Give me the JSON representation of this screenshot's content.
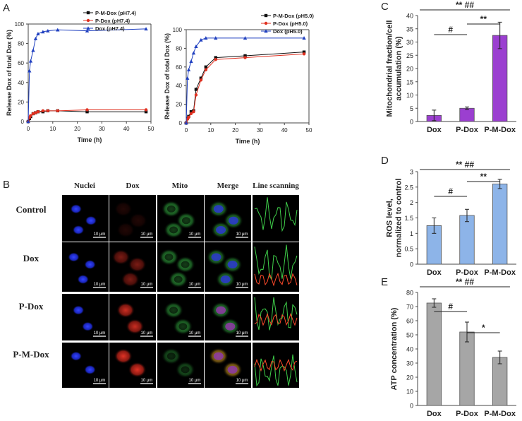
{
  "colors": {
    "pmdox": "#111111",
    "pdox": "#e03020",
    "dox": "#2040c0",
    "bar_c": "#9b3fd0",
    "bar_d": "#8db4e8",
    "bar_e": "#a6a6a6",
    "nuclei": "#1d2cd8",
    "red_cell": "#cc2a1e",
    "green_cell": "#2f9a3a",
    "merge_yellow": "#c79a1f"
  },
  "panel_labels": {
    "a": "A",
    "b": "B",
    "c": "C",
    "d": "D",
    "e": "E"
  },
  "chart_data": [
    {
      "id": "A1",
      "type": "line",
      "xlabel": "Time (h)",
      "ylabel": "Release Dox of total Dox (%)",
      "xlim": [
        0,
        50
      ],
      "ylim": [
        0,
        100
      ],
      "xticks": [
        "0",
        "10",
        "20",
        "30",
        "40",
        "50"
      ],
      "yticks": [
        "0",
        "20",
        "40",
        "60",
        "80",
        "100"
      ],
      "legend_position": "top-center",
      "series": [
        {
          "name": "P-M-Dox (pH7.4)",
          "marker": "square",
          "color": "#111111",
          "x": [
            0,
            0.5,
            1,
            2,
            3,
            4,
            6,
            8,
            12,
            24,
            48
          ],
          "y": [
            0,
            3,
            5,
            8,
            9,
            10,
            10,
            11,
            11,
            10,
            10
          ]
        },
        {
          "name": "P-Dox (pH7.4)",
          "marker": "circle",
          "color": "#e03020",
          "x": [
            0,
            0.5,
            1,
            2,
            3,
            4,
            6,
            8,
            12,
            24,
            48
          ],
          "y": [
            0,
            4,
            6,
            8,
            9,
            10,
            11,
            11,
            11,
            12,
            12
          ]
        },
        {
          "name": "Dox (pH7.4)",
          "marker": "triangle",
          "color": "#2040c0",
          "x": [
            0,
            0.5,
            1,
            2,
            3,
            4,
            6,
            8,
            12,
            24,
            48
          ],
          "y": [
            0,
            52,
            62,
            73,
            85,
            90,
            92,
            93,
            94,
            93,
            95
          ]
        }
      ]
    },
    {
      "id": "A2",
      "type": "line",
      "xlabel": "Time (h)",
      "ylabel": "Release Dox of total Dox (%)",
      "xlim": [
        0,
        50
      ],
      "ylim": [
        0,
        100
      ],
      "xticks": [
        "0",
        "10",
        "20",
        "30",
        "40",
        "50"
      ],
      "yticks": [
        "0",
        "20",
        "40",
        "60",
        "80",
        "100"
      ],
      "legend_position": "top-right",
      "series": [
        {
          "name": "P-M-Dox (pH5.0)",
          "marker": "square",
          "color": "#111111",
          "x": [
            0,
            0.5,
            1,
            2,
            3,
            4,
            6,
            8,
            12,
            24,
            48
          ],
          "y": [
            0,
            5,
            7,
            12,
            13,
            36,
            48,
            60,
            70,
            72,
            76
          ]
        },
        {
          "name": "P-Dox (pH5.0)",
          "marker": "circle",
          "color": "#e03020",
          "x": [
            0,
            0.5,
            1,
            2,
            3,
            4,
            6,
            8,
            12,
            24,
            48
          ],
          "y": [
            0,
            4,
            6,
            10,
            12,
            30,
            46,
            57,
            68,
            70,
            74
          ]
        },
        {
          "name": "Dox (pH5.0)",
          "marker": "triangle",
          "color": "#2040c0",
          "x": [
            0,
            0.5,
            1,
            2,
            3,
            4,
            6,
            8,
            12,
            24,
            48
          ],
          "y": [
            0,
            48,
            57,
            66,
            75,
            82,
            89,
            91,
            91,
            91,
            91
          ]
        }
      ]
    },
    {
      "id": "C",
      "type": "bar",
      "ylabel": "Mitochondrial fraction/cell accumulation (%)",
      "ylabel_lines": [
        "Mitochondrial fraction/cell",
        "accumulation (%)"
      ],
      "categories": [
        "Dox",
        "P-Dox",
        "P-M-Dox"
      ],
      "values": [
        2.3,
        5.0,
        32.5
      ],
      "errors": [
        2.0,
        0.5,
        5.0
      ],
      "ylim": [
        0,
        40
      ],
      "yticks": [
        "0",
        "5",
        "10",
        "15",
        "20",
        "25",
        "30",
        "35",
        "40"
      ],
      "annotations": [
        {
          "from": 1,
          "to": 3,
          "text": "** ##"
        },
        {
          "from": 1,
          "to": 2,
          "text": "#"
        },
        {
          "from": 2,
          "to": 3,
          "text": "**"
        }
      ]
    },
    {
      "id": "D",
      "type": "bar",
      "ylabel": "ROS level, normalized to control",
      "ylabel_lines": [
        "ROS level,",
        "normalized to control"
      ],
      "categories": [
        "Dox",
        "P-Dox",
        "P-M-Dox"
      ],
      "values": [
        1.25,
        1.58,
        2.6
      ],
      "errors": [
        0.25,
        0.2,
        0.15
      ],
      "ylim": [
        0,
        3
      ],
      "yticks": [
        "0",
        "0.5",
        "1",
        "1.5",
        "2",
        "2.5",
        "3"
      ],
      "annotations": [
        {
          "from": 1,
          "to": 3,
          "text": "** ##"
        },
        {
          "from": 1,
          "to": 2,
          "text": "#"
        },
        {
          "from": 2,
          "to": 3,
          "text": "**"
        }
      ]
    },
    {
      "id": "E",
      "type": "bar",
      "ylabel": "ATP concentration (%)",
      "ylabel_lines": [
        "ATP concentration (%)"
      ],
      "categories": [
        "Dox",
        "P-Dox",
        "P-M-Dox"
      ],
      "values": [
        72.5,
        52,
        34
      ],
      "errors": [
        3,
        7,
        4.5
      ],
      "ylim": [
        0,
        80
      ],
      "yticks": [
        "0",
        "10",
        "20",
        "30",
        "40",
        "50",
        "60",
        "70",
        "80"
      ],
      "annotations": [
        {
          "from": 1,
          "to": 3,
          "text": "** ##"
        },
        {
          "from": 1,
          "to": 2,
          "text": "#"
        },
        {
          "from": 2,
          "to": 3,
          "text": "*"
        }
      ]
    }
  ],
  "micrographs": {
    "columns": [
      "Nuclei",
      "Dox",
      "Mito",
      "Merge",
      "Line scanning"
    ],
    "rows": [
      "Control",
      "Dox",
      "P-Dox",
      "P-M-Dox"
    ],
    "scale_bar": "10 μm"
  }
}
